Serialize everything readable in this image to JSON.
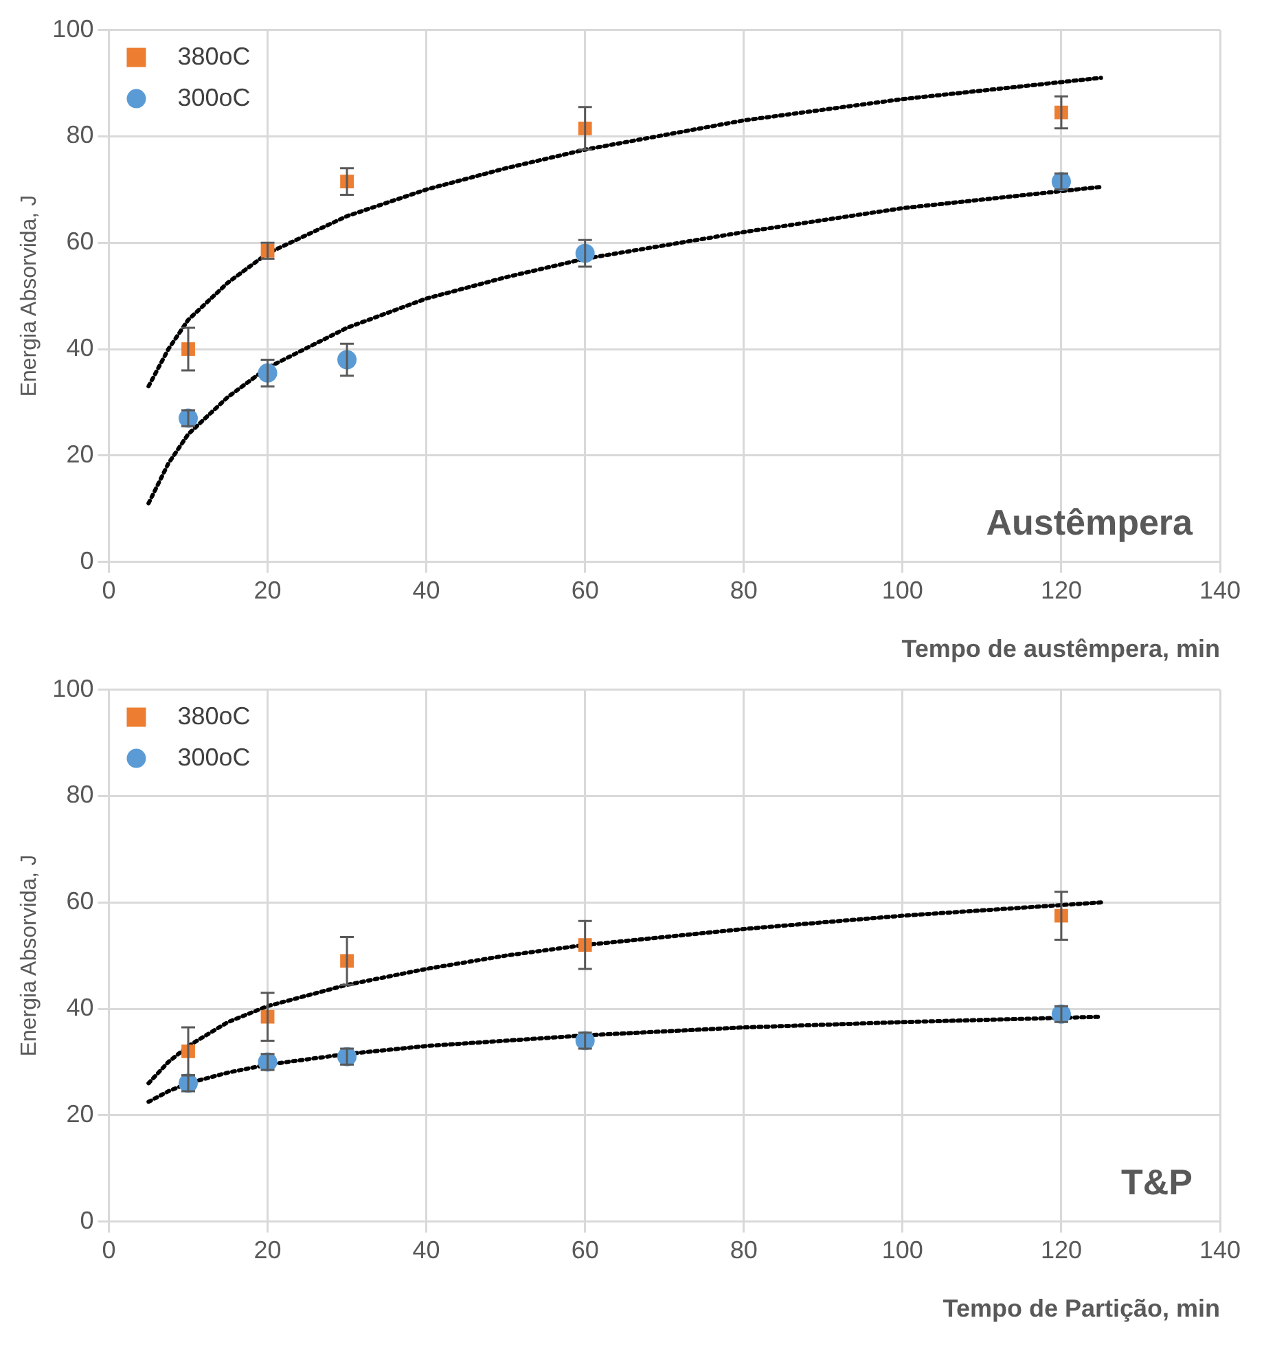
{
  "chart_data": [
    {
      "type": "scatter",
      "xlabel": "Tempo de austêmpera, min",
      "ylabel": "Energia Absorvida, J",
      "xlim": [
        0,
        140
      ],
      "xticks": [
        0,
        20,
        40,
        60,
        80,
        100,
        120,
        140
      ],
      "ylim": [
        0,
        100
      ],
      "yticks": [
        0,
        20,
        40,
        60,
        80,
        100
      ],
      "grid": true,
      "legend": "top left",
      "annotations": [
        "Austêmpera"
      ],
      "series": [
        {
          "name": "380oC",
          "color": "#ed7d31",
          "marker": "square",
          "x": [
            10,
            20,
            30,
            60,
            120
          ],
          "values": [
            40,
            58.5,
            71.5,
            81.5,
            84.5
          ],
          "errors": [
            4,
            1.5,
            2.5,
            4,
            3
          ]
        },
        {
          "name": "300oC",
          "color": "#5b9bd5",
          "marker": "circle",
          "x": [
            10,
            20,
            30,
            60,
            120
          ],
          "values": [
            27,
            35.5,
            38,
            58,
            71.5
          ],
          "errors": [
            1.5,
            2.5,
            3,
            2.5,
            1.5
          ]
        },
        {
          "type": "line",
          "color": "#000000",
          "marker": "none",
          "line_style": "dotted",
          "x": [
            5,
            7.5,
            10,
            15,
            20,
            30,
            40,
            50,
            60,
            80,
            100,
            125
          ],
          "values": [
            33,
            40,
            45.5,
            52.5,
            58,
            65,
            70,
            74,
            77.5,
            83,
            87,
            91
          ]
        },
        {
          "type": "line",
          "color": "#000000",
          "marker": "none",
          "line_style": "dotted",
          "x": [
            5,
            7.5,
            10,
            15,
            20,
            30,
            40,
            50,
            60,
            80,
            100,
            125
          ],
          "values": [
            11,
            18.5,
            24,
            31,
            36.5,
            44,
            49.5,
            53.5,
            57,
            62,
            66.5,
            70.5
          ]
        }
      ]
    },
    {
      "type": "scatter",
      "xlabel": "Tempo de Partição, min",
      "ylabel": "Energia Absorvida, J",
      "xlim": [
        0,
        140
      ],
      "xticks": [
        0,
        20,
        40,
        60,
        80,
        100,
        120,
        140
      ],
      "ylim": [
        0,
        100
      ],
      "yticks": [
        0,
        20,
        40,
        60,
        80,
        100
      ],
      "grid": true,
      "legend": "top left",
      "annotations": [
        "T&P"
      ],
      "series": [
        {
          "name": "380oC",
          "color": "#ed7d31",
          "marker": "square",
          "x": [
            10,
            20,
            30,
            60,
            120
          ],
          "values": [
            32,
            38.5,
            49,
            52,
            57.5
          ],
          "errors": [
            4.5,
            4.5,
            4.5,
            4.5,
            4.5
          ]
        },
        {
          "name": "300oC",
          "color": "#5b9bd5",
          "marker": "circle",
          "x": [
            10,
            20,
            30,
            60,
            120
          ],
          "values": [
            26,
            30,
            31,
            34,
            39
          ],
          "errors": [
            1.5,
            1.5,
            1.5,
            1.5,
            1.5
          ]
        },
        {
          "type": "line",
          "color": "#000000",
          "marker": "none",
          "line_style": "dotted",
          "x": [
            5,
            7.5,
            10,
            15,
            20,
            30,
            40,
            50,
            60,
            80,
            100,
            125
          ],
          "values": [
            26,
            30,
            33,
            37.5,
            40.5,
            44.5,
            47.5,
            50,
            52,
            55,
            57.5,
            60
          ]
        },
        {
          "type": "line",
          "color": "#000000",
          "marker": "none",
          "line_style": "dotted",
          "x": [
            5,
            7.5,
            10,
            15,
            20,
            30,
            40,
            50,
            60,
            80,
            100,
            125
          ],
          "values": [
            22.5,
            24.5,
            26,
            28,
            29.5,
            31.5,
            33,
            34,
            35,
            36.5,
            37.5,
            38.5
          ]
        }
      ]
    }
  ]
}
